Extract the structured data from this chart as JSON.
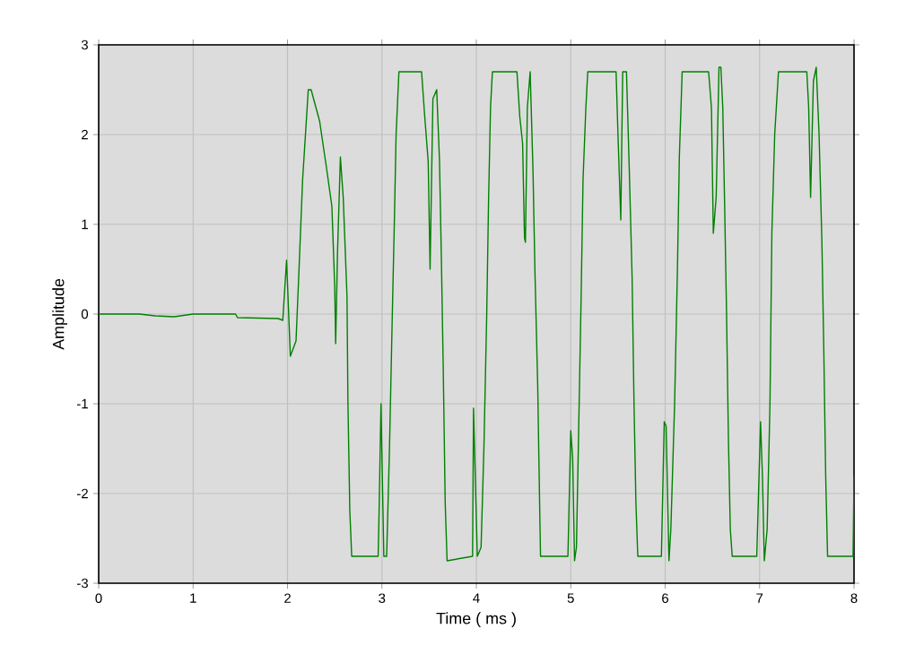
{
  "chart_data": {
    "type": "line",
    "xlabel": "Time ( ms )",
    "ylabel": "Amplitude",
    "xlim": [
      0,
      8
    ],
    "ylim": [
      -3,
      3
    ],
    "xticks": [
      0,
      1,
      2,
      3,
      4,
      5,
      6,
      7,
      8
    ],
    "yticks": [
      -3,
      -2,
      -1,
      0,
      1,
      2,
      3
    ],
    "grid": true,
    "marker": "none",
    "line_style": "solid",
    "series": [
      {
        "color": "#008000",
        "x": [
          0,
          0.43,
          0.6,
          0.8,
          1.0,
          1.45,
          1.47,
          1.9,
          1.95,
          1.99,
          2.03,
          2.09,
          2.12,
          2.16,
          2.22,
          2.25,
          2.34,
          2.41,
          2.47,
          2.5,
          2.51,
          2.53,
          2.56,
          2.59,
          2.63,
          2.64,
          2.66,
          2.68,
          2.96,
          2.97,
          2.99,
          3.02,
          3.05,
          3.08,
          3.11,
          3.13,
          3.15,
          3.18,
          3.42,
          3.45,
          3.49,
          3.51,
          3.54,
          3.58,
          3.61,
          3.63,
          3.65,
          3.67,
          3.69,
          3.96,
          3.97,
          4.01,
          4.05,
          4.08,
          4.11,
          4.13,
          4.15,
          4.17,
          4.43,
          4.46,
          4.49,
          4.51,
          4.52,
          4.54,
          4.57,
          4.6,
          4.62,
          4.65,
          4.67,
          4.68,
          4.97,
          5.0,
          5.02,
          5.04,
          5.06,
          5.08,
          5.11,
          5.13,
          5.16,
          5.18,
          5.48,
          5.5,
          5.53,
          5.55,
          5.59,
          5.62,
          5.65,
          5.67,
          5.69,
          5.71,
          5.96,
          5.99,
          6.01,
          6.04,
          6.06,
          6.1,
          6.13,
          6.15,
          6.18,
          6.46,
          6.49,
          6.51,
          6.54,
          6.57,
          6.59,
          6.61,
          6.63,
          6.65,
          6.67,
          6.69,
          6.71,
          6.97,
          7.01,
          7.03,
          7.05,
          7.08,
          7.11,
          7.13,
          7.16,
          7.2,
          7.5,
          7.52,
          7.54,
          7.57,
          7.6,
          7.63,
          7.66,
          7.68,
          7.7,
          7.72,
          7.99,
          8.0
        ],
        "values": [
          0,
          0,
          -0.02,
          -0.03,
          0,
          0,
          -0.04,
          -0.05,
          -0.07,
          0.6,
          -0.47,
          -0.3,
          0.45,
          1.5,
          2.5,
          2.5,
          2.15,
          1.65,
          1.2,
          0.3,
          -0.33,
          0.7,
          1.75,
          1.3,
          0.2,
          -1.0,
          -2.2,
          -2.7,
          -2.7,
          -2.2,
          -1.0,
          -2.7,
          -2.7,
          -1.5,
          0,
          0.95,
          2.0,
          2.7,
          2.7,
          2.25,
          1.7,
          0.5,
          2.4,
          2.5,
          1.7,
          0.6,
          -0.65,
          -2.1,
          -2.75,
          -2.7,
          -1.05,
          -2.7,
          -2.6,
          -1.5,
          0,
          1.3,
          2.3,
          2.7,
          2.7,
          2.2,
          1.9,
          0.85,
          0.8,
          2.3,
          2.7,
          1.6,
          0.5,
          -0.8,
          -2.1,
          -2.7,
          -2.7,
          -1.3,
          -1.6,
          -2.75,
          -2.6,
          -1.5,
          0.2,
          1.5,
          2.3,
          2.7,
          2.7,
          2.0,
          1.05,
          2.7,
          2.7,
          1.6,
          0.4,
          -1.0,
          -2.1,
          -2.7,
          -2.7,
          -1.2,
          -1.25,
          -2.75,
          -2.4,
          -1.0,
          0.5,
          1.75,
          2.7,
          2.7,
          2.3,
          0.9,
          1.3,
          2.75,
          2.75,
          2.3,
          1.2,
          0,
          -1.4,
          -2.4,
          -2.7,
          -2.7,
          -1.2,
          -1.8,
          -2.75,
          -2.4,
          -1.0,
          0.9,
          2.0,
          2.7,
          2.7,
          2.3,
          1.3,
          2.6,
          2.75,
          2.0,
          0.8,
          -0.4,
          -1.8,
          -2.7,
          -2.7,
          -1.8
        ]
      }
    ]
  }
}
